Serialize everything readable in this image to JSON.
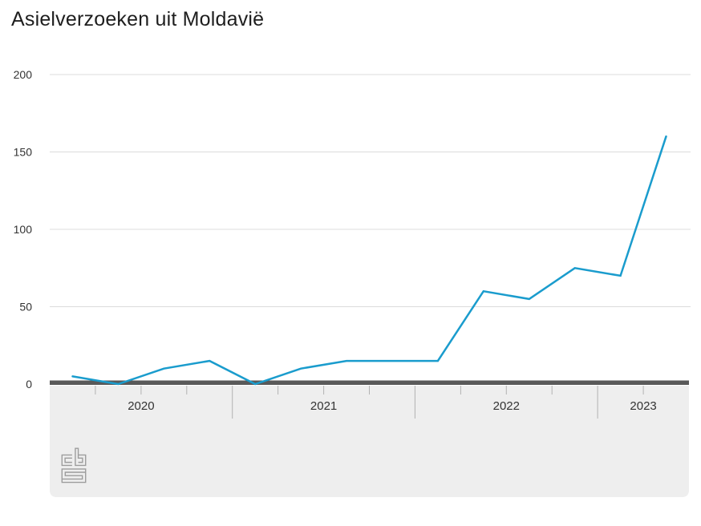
{
  "title": "Asielverzoeken uit Moldavië",
  "chart_data": {
    "type": "line",
    "title": "Asielverzoeken uit Moldavië",
    "x": [
      "2020 Q1",
      "2020 Q2",
      "2020 Q3",
      "2020 Q4",
      "2021 Q1",
      "2021 Q2",
      "2021 Q3",
      "2021 Q4",
      "2022 Q1",
      "2022 Q2",
      "2022 Q3",
      "2022 Q4",
      "2023 Q1",
      "2023 Q2"
    ],
    "values": [
      5,
      0,
      10,
      15,
      0,
      10,
      15,
      15,
      15,
      60,
      55,
      75,
      70,
      160
    ],
    "ylim": [
      0,
      200
    ],
    "yticks": [
      0,
      50,
      100,
      150,
      200
    ],
    "xtick_year_labels": [
      "2020",
      "2021",
      "2022",
      "2023"
    ],
    "quarters_per_year": [
      4,
      4,
      4,
      2
    ],
    "grid": true,
    "legend": "none",
    "line_color": "#1a9ccd"
  },
  "logo": {
    "name": "CBS"
  },
  "colors": {
    "line": "#1a9ccd",
    "grid": "#dcdcdc",
    "axis": "#595959",
    "band": "#eeeeee",
    "tick": "#b2b2b2",
    "text": "#333333",
    "title": "#1e1e1e",
    "logo": "#9c9c9c"
  }
}
